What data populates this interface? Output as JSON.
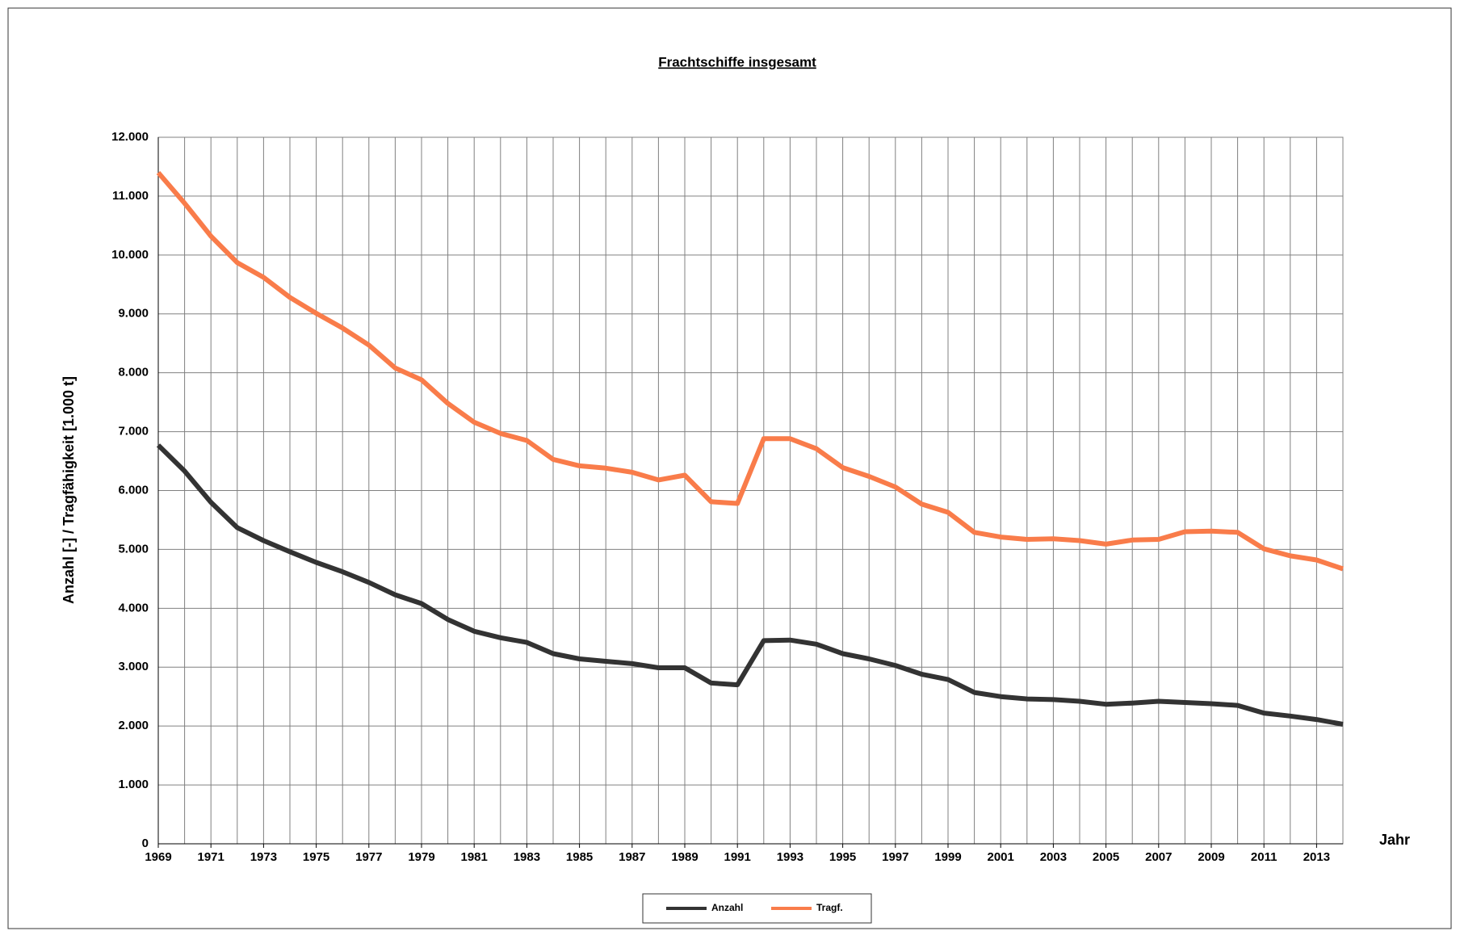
{
  "chart_data": {
    "type": "line",
    "title": "Frachtschiffe insgesamt",
    "x_label": "Jahr",
    "y_label": "Anzahl [-] / Tragfähigkeit [1.000 t]",
    "x": [
      1969,
      1970,
      1971,
      1972,
      1973,
      1974,
      1975,
      1976,
      1977,
      1978,
      1979,
      1980,
      1981,
      1982,
      1983,
      1984,
      1985,
      1986,
      1987,
      1988,
      1989,
      1990,
      1991,
      1992,
      1993,
      1994,
      1995,
      1996,
      1997,
      1998,
      1999,
      2000,
      2001,
      2002,
      2003,
      2004,
      2005,
      2006,
      2007,
      2008,
      2009,
      2010,
      2011,
      2012,
      2013,
      2014
    ],
    "series": [
      {
        "name": "Anzahl",
        "color": "#333333",
        "values": [
          6770,
          6330,
          5800,
          5370,
          5150,
          4960,
          4780,
          4620,
          4440,
          4230,
          4080,
          3810,
          3610,
          3500,
          3420,
          3230,
          3140,
          3100,
          3060,
          2990,
          2990,
          2730,
          2700,
          3450,
          3460,
          3390,
          3230,
          3140,
          3030,
          2880,
          2790,
          2570,
          2500,
          2460,
          2450,
          2420,
          2370,
          2390,
          2420,
          2400,
          2380,
          2350,
          2220,
          2170,
          2110,
          2030
        ]
      },
      {
        "name": "Tragf.",
        "color": "#f97c4a",
        "values": [
          11400,
          10880,
          10320,
          9870,
          9620,
          9280,
          9010,
          8760,
          8470,
          8080,
          7880,
          7480,
          7160,
          6970,
          6850,
          6530,
          6420,
          6380,
          6310,
          6180,
          6260,
          5810,
          5780,
          6880,
          6880,
          6710,
          6390,
          6240,
          6060,
          5770,
          5630,
          5290,
          5210,
          5170,
          5180,
          5150,
          5090,
          5160,
          5170,
          5300,
          5310,
          5290,
          5010,
          4890,
          4820,
          4670
        ]
      }
    ],
    "xlim": [
      1969,
      2014
    ],
    "xticks": [
      1969,
      1971,
      1973,
      1975,
      1977,
      1979,
      1981,
      1983,
      1985,
      1987,
      1989,
      1991,
      1993,
      1995,
      1997,
      1999,
      2001,
      2003,
      2005,
      2007,
      2009,
      2011,
      2013
    ],
    "ylim": [
      0,
      12000
    ],
    "yticks": [
      0,
      {
        "value": 1000,
        "label": "1.000"
      },
      {
        "value": 2000,
        "label": "2.000"
      },
      {
        "value": 3000,
        "label": "3.000"
      },
      {
        "value": 4000,
        "label": "4.000"
      },
      {
        "value": 5000,
        "label": "5.000"
      },
      {
        "value": 6000,
        "label": "6.000"
      },
      {
        "value": 7000,
        "label": "7.000"
      },
      {
        "value": 8000,
        "label": "8.000"
      },
      {
        "value": 9000,
        "label": "9.000"
      },
      {
        "value": 10000,
        "label": "10.000"
      },
      {
        "value": 11000,
        "label": "11.000"
      },
      {
        "value": 12000,
        "label": "12.000"
      }
    ],
    "grid": true,
    "legend": "bottom"
  }
}
